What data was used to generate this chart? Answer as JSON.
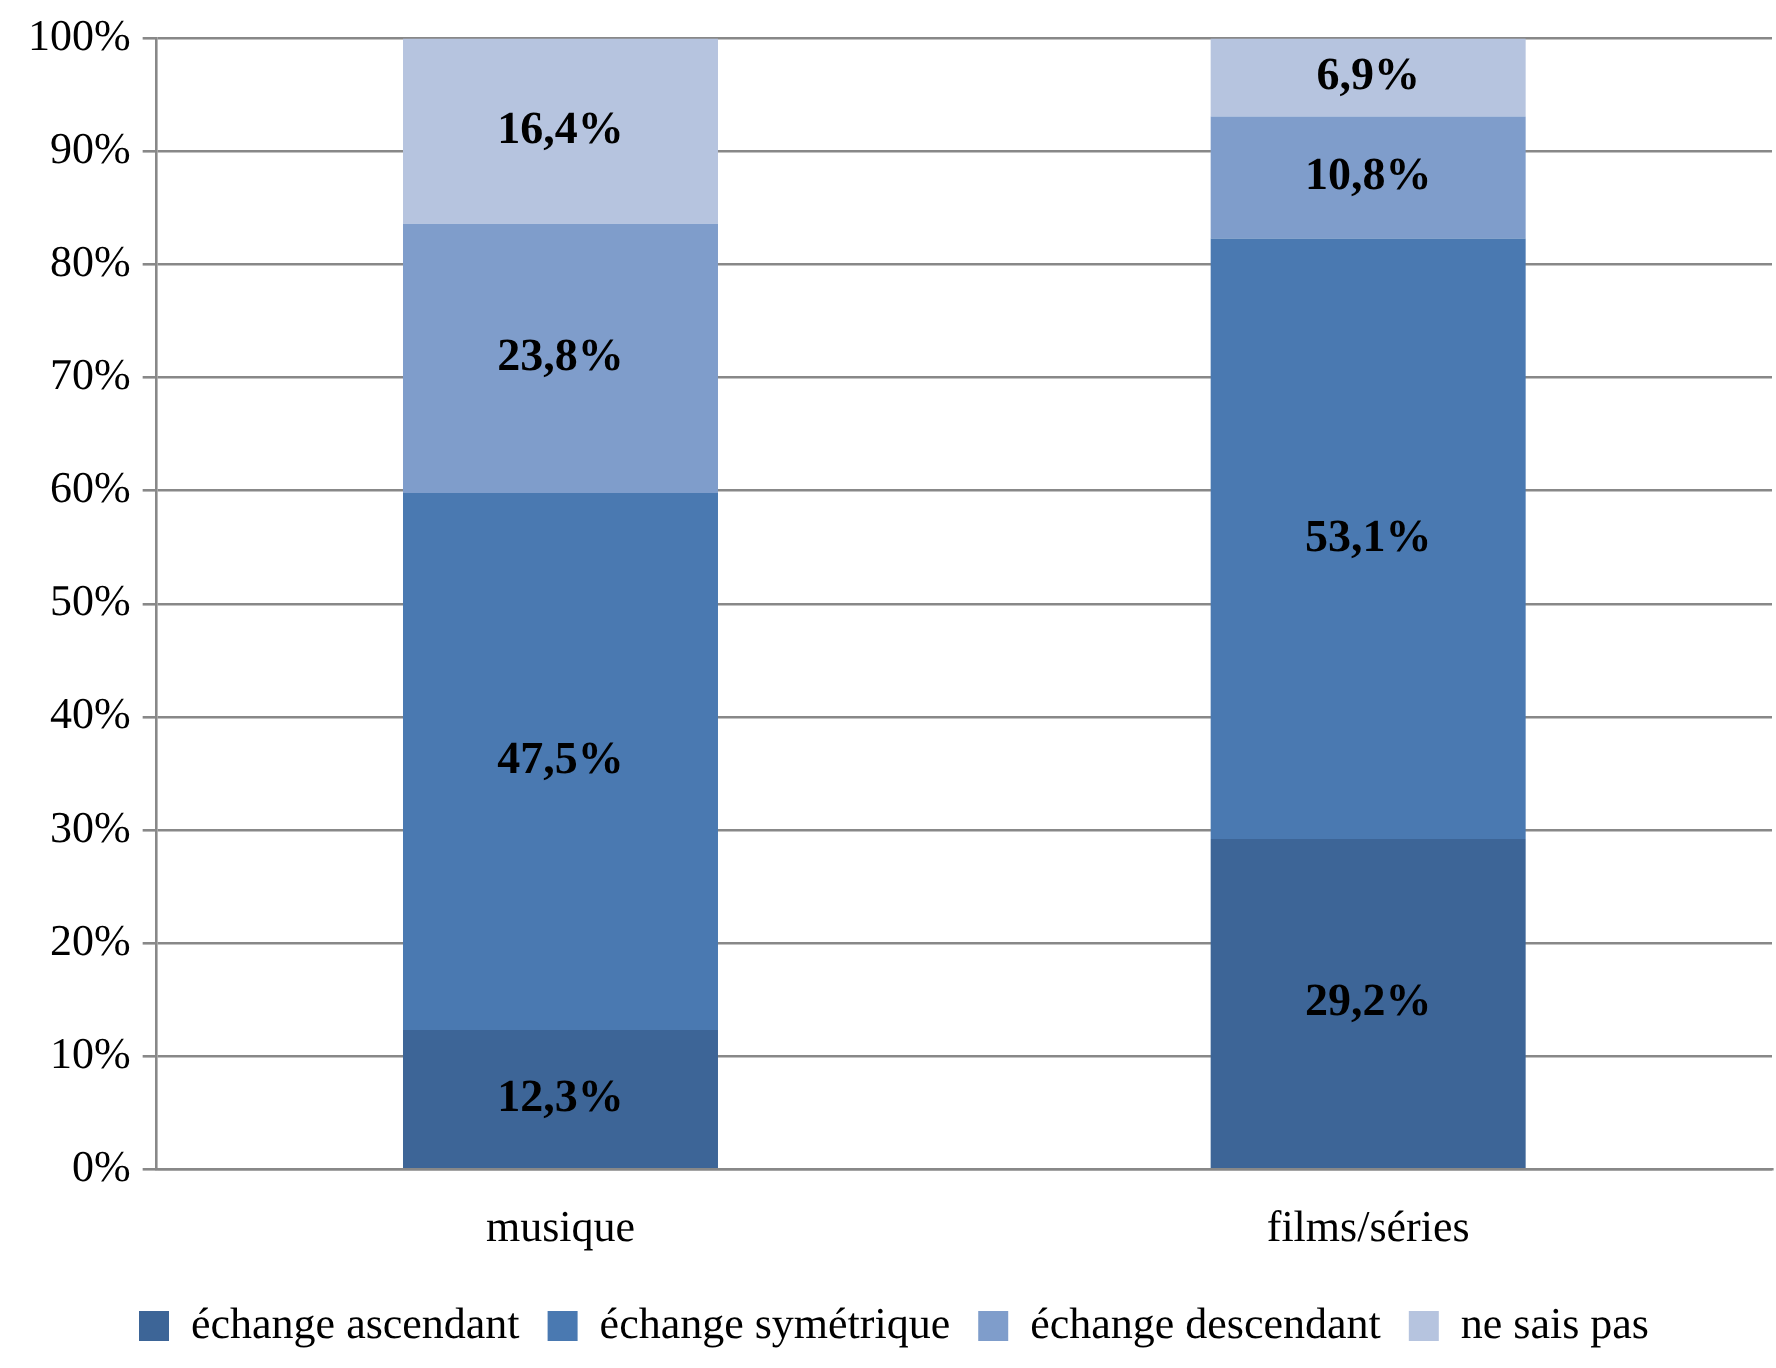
{
  "chart_data": {
    "type": "bar",
    "stacked": true,
    "categories": [
      "musique",
      "films/séries"
    ],
    "series": [
      {
        "name": "échange ascendant",
        "color": "#3d6597",
        "values": [
          12.3,
          29.2
        ],
        "value_labels": [
          "12,3%",
          "29,2%"
        ]
      },
      {
        "name": "échange symétrique",
        "color": "#4a79b1",
        "values": [
          47.5,
          53.1
        ],
        "value_labels": [
          "47,5%",
          "53,1%"
        ]
      },
      {
        "name": "échange descendant",
        "color": "#7f9dcb",
        "values": [
          23.8,
          10.8
        ],
        "value_labels": [
          "23,8%",
          "10,8%"
        ]
      },
      {
        "name": "ne sais pas",
        "color": "#b6c4df",
        "values": [
          16.4,
          6.9
        ],
        "value_labels": [
          "16,4%",
          "6,9%"
        ]
      }
    ],
    "ylim": [
      0,
      100
    ],
    "yticks": [
      {
        "value": 0,
        "label": "0%"
      },
      {
        "value": 10,
        "label": "10%"
      },
      {
        "value": 20,
        "label": "20%"
      },
      {
        "value": 30,
        "label": "30%"
      },
      {
        "value": 40,
        "label": "40%"
      },
      {
        "value": 50,
        "label": "50%"
      },
      {
        "value": 60,
        "label": "60%"
      },
      {
        "value": 70,
        "label": "70%"
      },
      {
        "value": 80,
        "label": "80%"
      },
      {
        "value": 90,
        "label": "90%"
      },
      {
        "value": 100,
        "label": "100%"
      }
    ],
    "grid": "y",
    "legend": "bottom"
  }
}
